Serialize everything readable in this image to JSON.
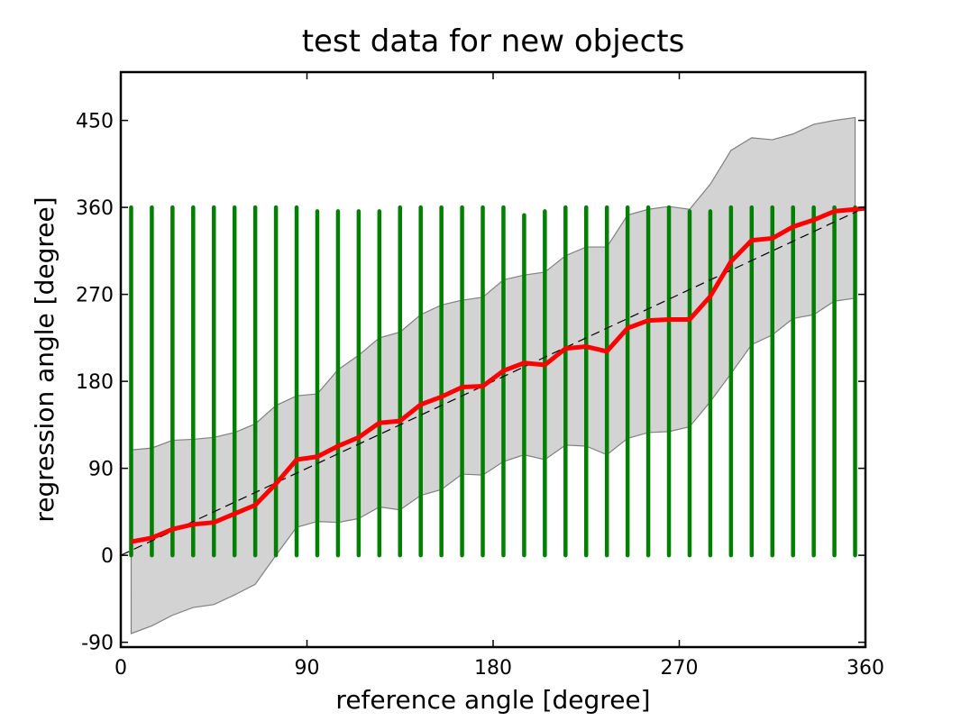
{
  "chart_data": {
    "type": "line",
    "title": "test data for new objects",
    "xlabel": "reference angle [degree]",
    "ylabel": "regression angle [degree]",
    "xlim": [
      0,
      360
    ],
    "ylim": [
      -95,
      500
    ],
    "xticks": [
      0,
      90,
      180,
      270,
      360
    ],
    "yticks": [
      -90,
      0,
      90,
      180,
      270,
      360,
      450
    ],
    "grid": false,
    "legend": "none",
    "series": [
      {
        "kind": "scatter-columns",
        "color": "#008000",
        "x": [
          5,
          15,
          25,
          35,
          45,
          55,
          65,
          75,
          85,
          95,
          105,
          115,
          125,
          135,
          145,
          155,
          165,
          175,
          185,
          195,
          205,
          215,
          225,
          235,
          245,
          255,
          265,
          275,
          285,
          295,
          305,
          315,
          325,
          335,
          345,
          355
        ],
        "ymin": [
          0,
          0,
          0,
          0,
          0,
          0,
          0,
          0,
          0,
          0,
          0,
          0,
          0,
          0,
          0,
          0,
          0,
          0,
          0,
          0,
          0,
          0,
          0,
          0,
          0,
          0,
          0,
          0,
          0,
          0,
          0,
          0,
          0,
          0,
          0,
          0
        ],
        "ymax": [
          360,
          360,
          360,
          360,
          360,
          360,
          360,
          360,
          360,
          356,
          356,
          356,
          356,
          360,
          360,
          360,
          360,
          360,
          360,
          352,
          356,
          360,
          360,
          360,
          360,
          360,
          360,
          356,
          356,
          360,
          360,
          360,
          360,
          360,
          360,
          360
        ]
      },
      {
        "kind": "band",
        "color": "#d3d3d3",
        "edge_color": "#808080",
        "x": [
          5,
          15,
          25,
          35,
          45,
          55,
          65,
          75,
          85,
          95,
          105,
          115,
          125,
          135,
          145,
          155,
          165,
          175,
          185,
          195,
          205,
          215,
          225,
          235,
          245,
          255,
          265,
          275,
          285,
          295,
          305,
          315,
          325,
          335,
          345,
          355
        ],
        "upper": [
          109,
          111,
          119,
          120,
          122,
          127,
          136,
          155,
          165,
          167,
          192,
          207,
          225,
          231,
          249,
          259,
          264,
          267,
          285,
          290,
          293,
          310,
          319,
          319,
          352,
          358,
          361,
          358,
          384,
          419,
          432,
          430,
          436,
          446,
          450,
          453
        ],
        "lower": [
          -81,
          -73,
          -62,
          -54,
          -51,
          -41,
          -30,
          0,
          29,
          35,
          34,
          38,
          50,
          47,
          62,
          68,
          84,
          83,
          97,
          104,
          99,
          114,
          113,
          104,
          121,
          127,
          128,
          133,
          159,
          188,
          218,
          228,
          245,
          249,
          263,
          266
        ]
      },
      {
        "kind": "line",
        "color": "#ff0000",
        "x": [
          5,
          15,
          25,
          35,
          45,
          55,
          65,
          75,
          85,
          95,
          105,
          115,
          125,
          135,
          145,
          155,
          165,
          175,
          185,
          195,
          205,
          215,
          225,
          235,
          245,
          255,
          265,
          275,
          285,
          295,
          305,
          315,
          325,
          335,
          345,
          355,
          360
        ],
        "y": [
          14,
          18,
          27,
          32,
          34,
          43,
          52,
          74,
          99,
          102,
          113,
          122,
          137,
          139,
          156,
          164,
          174,
          175,
          191,
          199,
          197,
          214,
          216,
          211,
          235,
          243,
          244,
          244,
          268,
          304,
          326,
          328,
          340,
          347,
          356,
          358,
          359
        ]
      },
      {
        "kind": "reference-line",
        "color": "#000000",
        "dash": "dashed",
        "x": [
          0,
          360
        ],
        "y": [
          0,
          360
        ]
      }
    ]
  }
}
